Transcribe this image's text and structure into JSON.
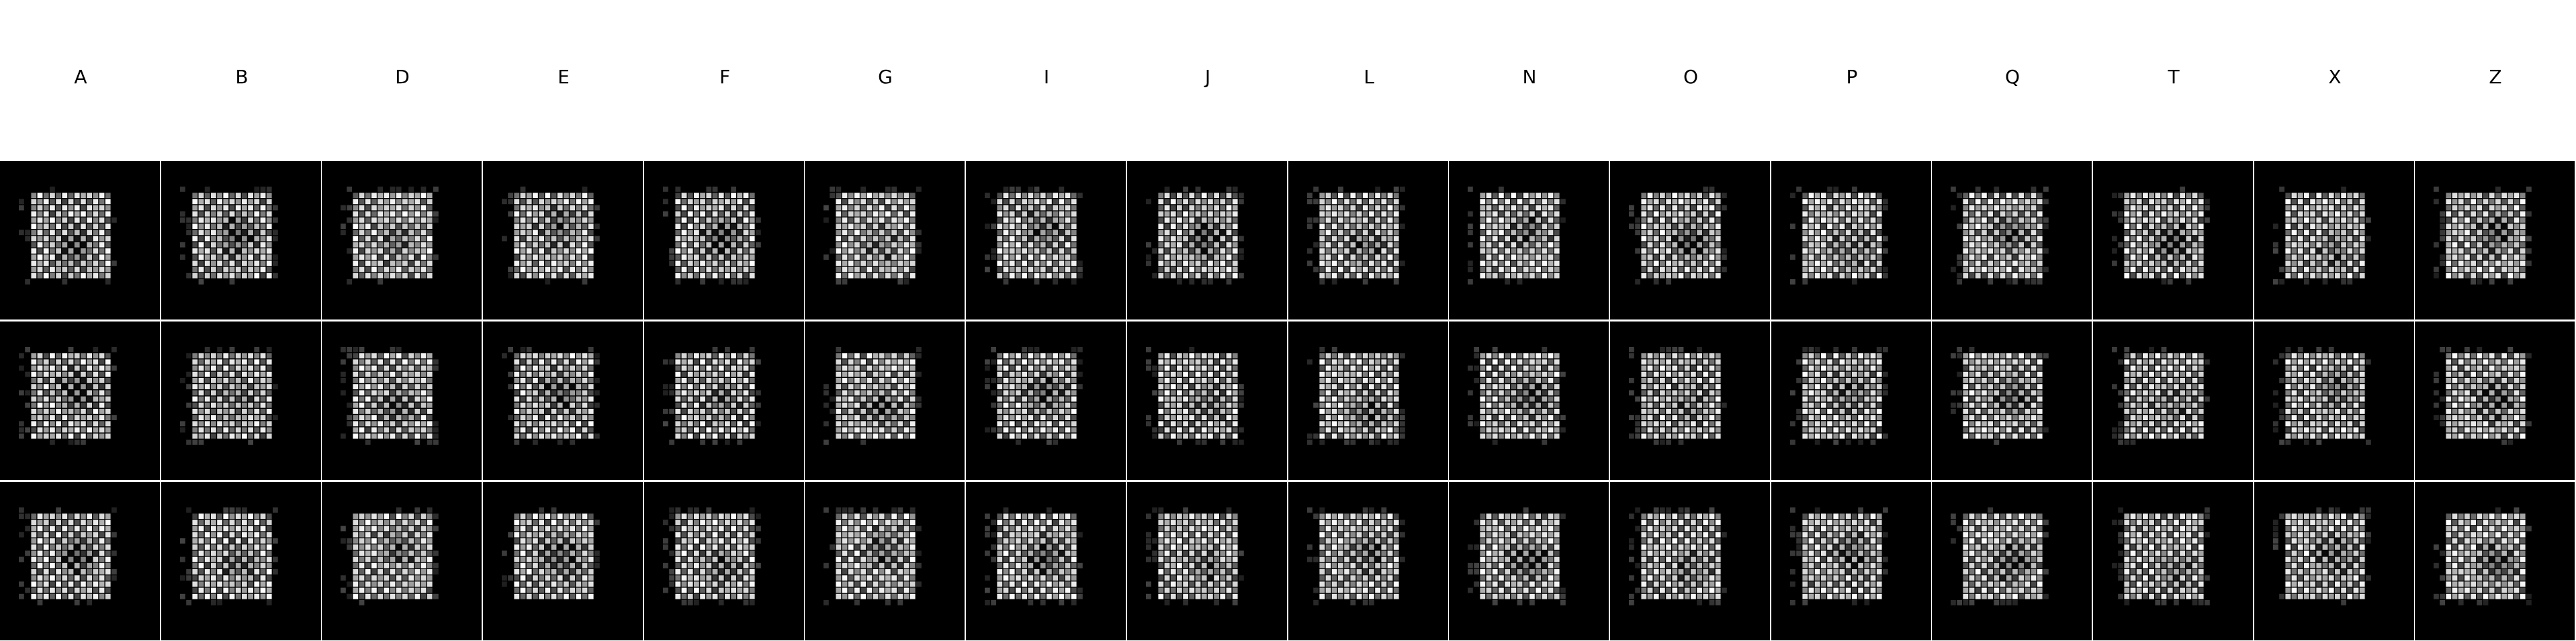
{
  "figure": {
    "columns": [
      "A",
      "B",
      "D",
      "E",
      "F",
      "G",
      "I",
      "J",
      "L",
      "N",
      "O",
      "P",
      "Q",
      "T",
      "X",
      "Z"
    ],
    "rows": 3,
    "colors": {
      "background": "#ffffff",
      "panel_background": "#000000",
      "cell_base": "#ffffff"
    }
  }
}
